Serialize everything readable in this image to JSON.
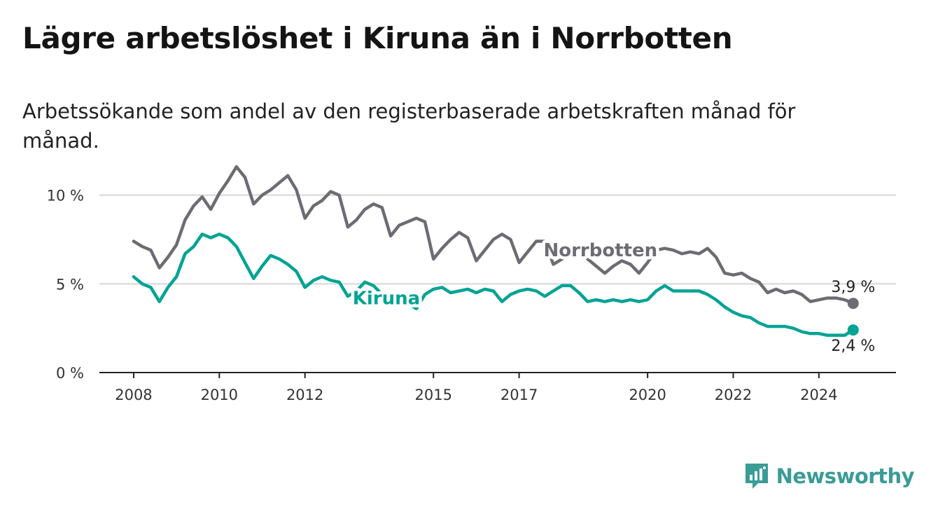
{
  "title": "Lägre arbetslöshet i Kiruna än i Norrbotten",
  "subtitle": "Arbetssökande som andel av den registerbaserade arbetskraften månad för månad.",
  "brand": {
    "name": "Newsworthy",
    "color": "#3a9b97",
    "icon": "bar-chart-icon"
  },
  "chart_data": {
    "type": "line",
    "ylim": [
      0,
      12
    ],
    "xlim": [
      2007.2,
      2025.8
    ],
    "y_ticks": [
      {
        "value": 0,
        "label": "0 %"
      },
      {
        "value": 5,
        "label": "5 %"
      },
      {
        "value": 10,
        "label": "10 %"
      }
    ],
    "x_ticks": [
      2008,
      2010,
      2012,
      2015,
      2017,
      2020,
      2022,
      2024
    ],
    "grid": "horizontal",
    "series": [
      {
        "name": "Norrbotten",
        "color": "#6d6b73",
        "end_label": "3,9 %",
        "points": [
          [
            2008.0,
            7.4
          ],
          [
            2008.2,
            7.1
          ],
          [
            2008.4,
            6.9
          ],
          [
            2008.6,
            5.9
          ],
          [
            2008.8,
            6.5
          ],
          [
            2009.0,
            7.2
          ],
          [
            2009.2,
            8.6
          ],
          [
            2009.4,
            9.4
          ],
          [
            2009.6,
            9.9
          ],
          [
            2009.8,
            9.2
          ],
          [
            2010.0,
            10.1
          ],
          [
            2010.2,
            10.8
          ],
          [
            2010.4,
            11.6
          ],
          [
            2010.6,
            11.0
          ],
          [
            2010.8,
            9.5
          ],
          [
            2011.0,
            10.0
          ],
          [
            2011.2,
            10.3
          ],
          [
            2011.4,
            10.7
          ],
          [
            2011.6,
            11.1
          ],
          [
            2011.8,
            10.3
          ],
          [
            2012.0,
            8.7
          ],
          [
            2012.2,
            9.4
          ],
          [
            2012.4,
            9.7
          ],
          [
            2012.6,
            10.2
          ],
          [
            2012.8,
            10.0
          ],
          [
            2013.0,
            8.2
          ],
          [
            2013.2,
            8.6
          ],
          [
            2013.4,
            9.2
          ],
          [
            2013.6,
            9.5
          ],
          [
            2013.8,
            9.3
          ],
          [
            2014.0,
            7.7
          ],
          [
            2014.2,
            8.3
          ],
          [
            2014.4,
            8.5
          ],
          [
            2014.6,
            8.7
          ],
          [
            2014.8,
            8.5
          ],
          [
            2015.0,
            6.4
          ],
          [
            2015.2,
            7.0
          ],
          [
            2015.4,
            7.5
          ],
          [
            2015.6,
            7.9
          ],
          [
            2015.8,
            7.6
          ],
          [
            2016.0,
            6.3
          ],
          [
            2016.2,
            6.9
          ],
          [
            2016.4,
            7.5
          ],
          [
            2016.6,
            7.8
          ],
          [
            2016.8,
            7.5
          ],
          [
            2017.0,
            6.2
          ],
          [
            2017.2,
            6.8
          ],
          [
            2017.4,
            7.4
          ],
          [
            2017.6,
            7.4
          ],
          [
            2017.8,
            6.1
          ],
          [
            2018.0,
            6.4
          ],
          [
            2018.2,
            6.7
          ],
          [
            2018.4,
            6.9
          ],
          [
            2018.6,
            6.4
          ],
          [
            2018.8,
            6.0
          ],
          [
            2019.0,
            5.6
          ],
          [
            2019.2,
            6.0
          ],
          [
            2019.4,
            6.3
          ],
          [
            2019.6,
            6.1
          ],
          [
            2019.8,
            5.6
          ],
          [
            2020.0,
            6.2
          ],
          [
            2020.2,
            6.9
          ],
          [
            2020.4,
            7.0
          ],
          [
            2020.6,
            6.9
          ],
          [
            2020.8,
            6.7
          ],
          [
            2021.0,
            6.8
          ],
          [
            2021.2,
            6.7
          ],
          [
            2021.4,
            7.0
          ],
          [
            2021.6,
            6.5
          ],
          [
            2021.8,
            5.6
          ],
          [
            2022.0,
            5.5
          ],
          [
            2022.2,
            5.6
          ],
          [
            2022.4,
            5.3
          ],
          [
            2022.6,
            5.1
          ],
          [
            2022.8,
            4.5
          ],
          [
            2023.0,
            4.7
          ],
          [
            2023.2,
            4.5
          ],
          [
            2023.4,
            4.6
          ],
          [
            2023.6,
            4.4
          ],
          [
            2023.8,
            4.0
          ],
          [
            2024.0,
            4.1
          ],
          [
            2024.2,
            4.2
          ],
          [
            2024.4,
            4.2
          ],
          [
            2024.6,
            4.1
          ],
          [
            2024.8,
            3.9
          ]
        ]
      },
      {
        "name": "Kiruna",
        "color": "#00a394",
        "end_label": "2,4 %",
        "points": [
          [
            2008.0,
            5.4
          ],
          [
            2008.2,
            5.0
          ],
          [
            2008.4,
            4.8
          ],
          [
            2008.6,
            4.0
          ],
          [
            2008.8,
            4.8
          ],
          [
            2009.0,
            5.4
          ],
          [
            2009.2,
            6.7
          ],
          [
            2009.4,
            7.1
          ],
          [
            2009.6,
            7.8
          ],
          [
            2009.8,
            7.6
          ],
          [
            2010.0,
            7.8
          ],
          [
            2010.2,
            7.6
          ],
          [
            2010.4,
            7.1
          ],
          [
            2010.6,
            6.2
          ],
          [
            2010.8,
            5.3
          ],
          [
            2011.0,
            6.0
          ],
          [
            2011.2,
            6.6
          ],
          [
            2011.4,
            6.4
          ],
          [
            2011.6,
            6.1
          ],
          [
            2011.8,
            5.7
          ],
          [
            2012.0,
            4.8
          ],
          [
            2012.2,
            5.2
          ],
          [
            2012.4,
            5.4
          ],
          [
            2012.6,
            5.2
          ],
          [
            2012.8,
            5.1
          ],
          [
            2013.0,
            4.3
          ],
          [
            2013.2,
            4.6
          ],
          [
            2013.4,
            5.1
          ],
          [
            2013.6,
            4.9
          ],
          [
            2013.8,
            4.4
          ],
          [
            2014.0,
            4.1
          ],
          [
            2014.2,
            4.0
          ],
          [
            2014.4,
            3.9
          ],
          [
            2014.6,
            3.6
          ],
          [
            2014.8,
            4.4
          ],
          [
            2015.0,
            4.7
          ],
          [
            2015.2,
            4.8
          ],
          [
            2015.4,
            4.5
          ],
          [
            2015.6,
            4.6
          ],
          [
            2015.8,
            4.7
          ],
          [
            2016.0,
            4.5
          ],
          [
            2016.2,
            4.7
          ],
          [
            2016.4,
            4.6
          ],
          [
            2016.6,
            4.0
          ],
          [
            2016.8,
            4.4
          ],
          [
            2017.0,
            4.6
          ],
          [
            2017.2,
            4.7
          ],
          [
            2017.4,
            4.6
          ],
          [
            2017.6,
            4.3
          ],
          [
            2017.8,
            4.6
          ],
          [
            2018.0,
            4.9
          ],
          [
            2018.2,
            4.9
          ],
          [
            2018.4,
            4.5
          ],
          [
            2018.6,
            4.0
          ],
          [
            2018.8,
            4.1
          ],
          [
            2019.0,
            4.0
          ],
          [
            2019.2,
            4.1
          ],
          [
            2019.4,
            4.0
          ],
          [
            2019.6,
            4.1
          ],
          [
            2019.8,
            4.0
          ],
          [
            2020.0,
            4.1
          ],
          [
            2020.2,
            4.6
          ],
          [
            2020.4,
            4.9
          ],
          [
            2020.6,
            4.6
          ],
          [
            2020.8,
            4.6
          ],
          [
            2021.0,
            4.6
          ],
          [
            2021.2,
            4.6
          ],
          [
            2021.4,
            4.4
          ],
          [
            2021.6,
            4.1
          ],
          [
            2021.8,
            3.7
          ],
          [
            2022.0,
            3.4
          ],
          [
            2022.2,
            3.2
          ],
          [
            2022.4,
            3.1
          ],
          [
            2022.6,
            2.8
          ],
          [
            2022.8,
            2.6
          ],
          [
            2023.0,
            2.6
          ],
          [
            2023.2,
            2.6
          ],
          [
            2023.4,
            2.5
          ],
          [
            2023.6,
            2.3
          ],
          [
            2023.8,
            2.2
          ],
          [
            2024.0,
            2.2
          ],
          [
            2024.2,
            2.1
          ],
          [
            2024.4,
            2.1
          ],
          [
            2024.6,
            2.1
          ],
          [
            2024.8,
            2.4
          ]
        ]
      }
    ]
  }
}
